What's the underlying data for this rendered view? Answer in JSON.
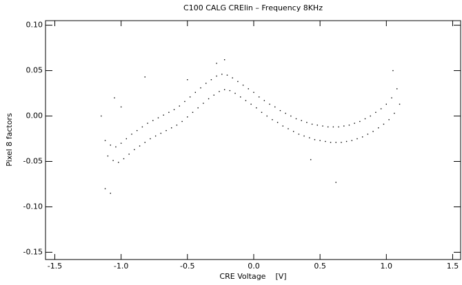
{
  "chart_data": {
    "type": "scatter",
    "title": "C100 CALG CRElin – Frequency 8KHz",
    "xlabel": "CRE Voltage    [V]",
    "ylabel": "Pixel 8 factors",
    "color": "#000000",
    "xlim": [
      -1.57,
      1.56
    ],
    "ylim": [
      -0.158,
      0.105
    ],
    "xticks": [
      -1.5,
      {
        "value": -1.0,
        "label": "-1.0"
      },
      -0.5,
      {
        "value": 0.0,
        "label": "0.0"
      },
      0.5,
      {
        "value": 1.0,
        "label": "1.0"
      },
      1.5
    ],
    "yticks": [
      {
        "value": 0.1,
        "label": "0.10"
      },
      0.05,
      {
        "value": 0.0,
        "label": "0.00"
      },
      -0.05,
      {
        "value": -0.1,
        "label": "-0.10"
      },
      -0.15
    ],
    "x": [
      -1.12,
      -1.1,
      -1.08,
      -1.06,
      -1.04,
      -1.02,
      -1.0,
      -0.98,
      -0.96,
      -0.94,
      -0.92,
      -0.9,
      -0.88,
      -0.86,
      -0.84,
      -0.82,
      -0.8,
      -0.78,
      -0.76,
      -0.74,
      -0.72,
      -0.7,
      -0.68,
      -0.66,
      -0.64,
      -0.62,
      -0.6,
      -0.58,
      -0.56,
      -0.54,
      -0.52,
      -0.5,
      -0.48,
      -0.46,
      -0.44,
      -0.42,
      -0.4,
      -0.38,
      -0.36,
      -0.34,
      -0.32,
      -0.3,
      -0.28,
      -0.26,
      -0.24,
      -0.22,
      -0.2,
      -0.18,
      -0.16,
      -0.14,
      -0.12,
      -0.1,
      -0.08,
      -0.06,
      -0.04,
      -0.02,
      0.0,
      0.02,
      0.04,
      0.06,
      0.08,
      0.1,
      0.12,
      0.14,
      0.16,
      0.18,
      0.2,
      0.22,
      0.24,
      0.26,
      0.28,
      0.3,
      0.32,
      0.34,
      0.36,
      0.38,
      0.4,
      0.42,
      0.44,
      0.46,
      0.48,
      0.5,
      0.52,
      0.54,
      0.56,
      0.58,
      0.6,
      0.62,
      0.64,
      0.66,
      0.68,
      0.7,
      0.72,
      0.74,
      0.76,
      0.78,
      0.8,
      0.82,
      0.84,
      0.86,
      0.88,
      0.9,
      0.92,
      0.94,
      0.96,
      0.98,
      1.0,
      1.02,
      1.04,
      1.06,
      1.08,
      1.1,
      -1.12,
      -1.08,
      -1.15,
      -1.05,
      -0.82,
      -0.5,
      -0.22,
      0.43,
      0.62,
      1.05,
      -1.0,
      -0.28
    ],
    "y": [
      -0.027,
      -0.044,
      -0.032,
      -0.049,
      -0.034,
      -0.051,
      -0.03,
      -0.047,
      -0.025,
      -0.042,
      -0.02,
      -0.037,
      -0.016,
      -0.033,
      -0.012,
      -0.029,
      -0.008,
      -0.025,
      -0.005,
      -0.022,
      -0.002,
      -0.019,
      0.001,
      -0.016,
      0.004,
      -0.013,
      0.007,
      -0.01,
      0.011,
      -0.006,
      0.016,
      -0.001,
      0.021,
      0.004,
      0.026,
      0.009,
      0.031,
      0.014,
      0.036,
      0.019,
      0.04,
      0.023,
      0.044,
      0.027,
      0.046,
      0.029,
      0.045,
      0.028,
      0.042,
      0.025,
      0.038,
      0.021,
      0.034,
      0.017,
      0.03,
      0.013,
      0.026,
      0.009,
      0.021,
      0.004,
      0.017,
      0.0,
      0.013,
      -0.004,
      0.01,
      -0.007,
      0.006,
      -0.011,
      0.003,
      -0.014,
      0.0,
      -0.017,
      -0.003,
      -0.02,
      -0.005,
      -0.022,
      -0.007,
      -0.024,
      -0.009,
      -0.026,
      -0.01,
      -0.027,
      -0.011,
      -0.028,
      -0.012,
      -0.029,
      -0.012,
      -0.029,
      -0.012,
      -0.029,
      -0.011,
      -0.028,
      -0.01,
      -0.027,
      -0.008,
      -0.025,
      -0.006,
      -0.023,
      -0.003,
      -0.02,
      0.0,
      -0.017,
      0.004,
      -0.013,
      0.008,
      -0.009,
      0.013,
      -0.004,
      0.02,
      0.003,
      0.03,
      0.013,
      -0.08,
      -0.085,
      0.0,
      0.02,
      0.043,
      0.04,
      0.062,
      -0.048,
      -0.073,
      0.05,
      0.01,
      0.058
    ]
  }
}
